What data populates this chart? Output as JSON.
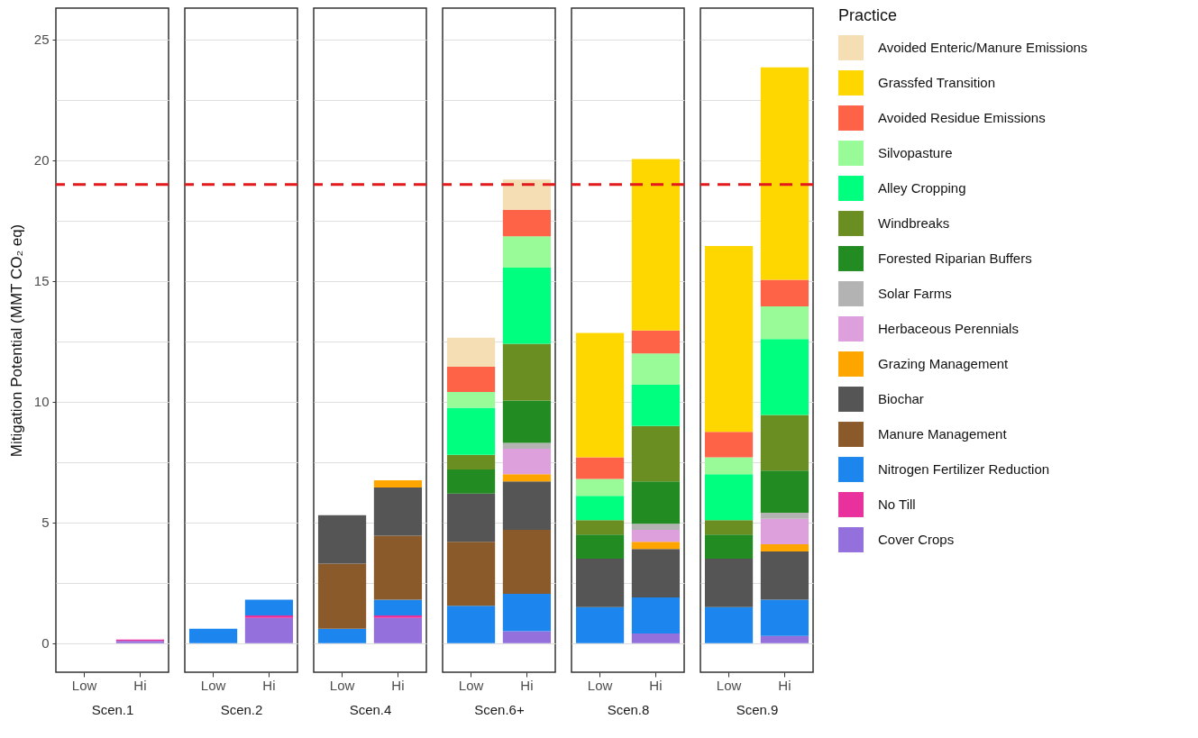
{
  "chart_data": [
    {
      "type": "bar",
      "stacked": true,
      "categories": [
        "Low",
        "Hi"
      ],
      "xlabel": "Scen.1",
      "ylabel": "Mitigation Potential (MMT CO₂ eq)",
      "ylim": [
        -1.2,
        26.3
      ],
      "yticks": [
        0,
        {
          "value": 2.5,
          "label": null
        },
        5,
        {
          "value": 7.5,
          "label": null
        },
        10,
        {
          "value": 12.5,
          "label": null
        },
        15,
        {
          "value": 17.5,
          "label": null
        },
        20,
        {
          "value": 22.5,
          "label": null
        },
        25
      ],
      "grid": "y",
      "ref_lines": [
        {
          "axis": "y",
          "value": 19,
          "color": "#e31a1c",
          "line_style": "dashed"
        }
      ],
      "series": [
        {
          "color": "#9370db",
          "values": [
            null,
            0.1
          ]
        },
        {
          "color": "#e8319c",
          "values": [
            null,
            0.05
          ]
        }
      ]
    },
    {
      "type": "bar",
      "stacked": true,
      "categories": [
        "Low",
        "Hi"
      ],
      "xlabel": "Scen.2",
      "ylim": [
        -1.2,
        26.3
      ],
      "yticks": [
        0,
        {
          "value": 2.5,
          "label": null
        },
        5,
        {
          "value": 7.5,
          "label": null
        },
        10,
        {
          "value": 12.5,
          "label": null
        },
        15,
        {
          "value": 17.5,
          "label": null
        },
        20,
        {
          "value": 22.5,
          "label": null
        },
        25
      ],
      "grid": "y",
      "tick_labels": "x",
      "ref_lines": [
        {
          "axis": "y",
          "value": 19,
          "color": "#e31a1c",
          "line_style": "dashed"
        }
      ],
      "series": [
        {
          "color": "#9370db",
          "values": [
            null,
            1.05
          ]
        },
        {
          "color": "#e8319c",
          "values": [
            null,
            0.1
          ]
        },
        {
          "color": "#1c86ee",
          "values": [
            0.6,
            0.65
          ]
        }
      ]
    },
    {
      "type": "bar",
      "stacked": true,
      "categories": [
        "Low",
        "Hi"
      ],
      "xlabel": "Scen.4",
      "ylim": [
        -1.2,
        26.3
      ],
      "yticks": [
        0,
        {
          "value": 2.5,
          "label": null
        },
        5,
        {
          "value": 7.5,
          "label": null
        },
        10,
        {
          "value": 12.5,
          "label": null
        },
        15,
        {
          "value": 17.5,
          "label": null
        },
        20,
        {
          "value": 22.5,
          "label": null
        },
        25
      ],
      "grid": "y",
      "tick_labels": "x",
      "ref_lines": [
        {
          "axis": "y",
          "value": 19,
          "color": "#e31a1c",
          "line_style": "dashed"
        }
      ],
      "series": [
        {
          "color": "#9370db",
          "values": [
            null,
            1.05
          ]
        },
        {
          "color": "#e8319c",
          "values": [
            null,
            0.1
          ]
        },
        {
          "color": "#1c86ee",
          "values": [
            0.6,
            0.65
          ]
        },
        {
          "color": "#8b5a2b",
          "values": [
            2.7,
            2.65
          ]
        },
        {
          "color": "#555555",
          "values": [
            2.0,
            2.0
          ]
        },
        {
          "color": "#ffa500",
          "values": [
            null,
            0.3
          ]
        }
      ]
    },
    {
      "type": "bar",
      "stacked": true,
      "categories": [
        "Low",
        "Hi"
      ],
      "xlabel": "Scen.6+",
      "ylim": [
        -1.2,
        26.3
      ],
      "yticks": [
        0,
        {
          "value": 2.5,
          "label": null
        },
        5,
        {
          "value": 7.5,
          "label": null
        },
        10,
        {
          "value": 12.5,
          "label": null
        },
        15,
        {
          "value": 17.5,
          "label": null
        },
        20,
        {
          "value": 22.5,
          "label": null
        },
        25
      ],
      "grid": "y",
      "tick_labels": "x",
      "ref_lines": [
        {
          "axis": "y",
          "value": 19,
          "color": "#e31a1c",
          "line_style": "dashed"
        }
      ],
      "series": [
        {
          "color": "#9370db",
          "values": [
            null,
            0.5
          ]
        },
        {
          "color": "#1c86ee",
          "values": [
            1.55,
            1.55
          ]
        },
        {
          "color": "#8b5a2b",
          "values": [
            2.65,
            2.65
          ]
        },
        {
          "color": "#555555",
          "values": [
            2.0,
            2.0
          ]
        },
        {
          "color": "#ffa500",
          "values": [
            null,
            0.3
          ]
        },
        {
          "color": "#dda0dd",
          "values": [
            null,
            1.05
          ]
        },
        {
          "color": "#b3b3b3",
          "values": [
            null,
            0.25
          ]
        },
        {
          "color": "#228b22",
          "values": [
            1.0,
            1.75
          ]
        },
        {
          "color": "#6b8e23",
          "values": [
            0.6,
            2.35
          ]
        },
        {
          "color": "#00ff7f",
          "values": [
            1.95,
            3.15
          ]
        },
        {
          "color": "#98fb98",
          "values": [
            0.65,
            1.3
          ]
        },
        {
          "color": "#ff6347",
          "values": [
            1.05,
            1.1
          ]
        },
        {
          "color": "#f5deb3",
          "values": [
            1.2,
            1.25
          ]
        }
      ]
    },
    {
      "type": "bar",
      "stacked": true,
      "categories": [
        "Low",
        "Hi"
      ],
      "xlabel": "Scen.8",
      "ylim": [
        -1.2,
        26.3
      ],
      "yticks": [
        0,
        {
          "value": 2.5,
          "label": null
        },
        5,
        {
          "value": 7.5,
          "label": null
        },
        10,
        {
          "value": 12.5,
          "label": null
        },
        15,
        {
          "value": 17.5,
          "label": null
        },
        20,
        {
          "value": 22.5,
          "label": null
        },
        25
      ],
      "grid": "y",
      "tick_labels": "x",
      "ref_lines": [
        {
          "axis": "y",
          "value": 19,
          "color": "#e31a1c",
          "line_style": "dashed"
        }
      ],
      "series": [
        {
          "color": "#9370db",
          "values": [
            null,
            0.4
          ]
        },
        {
          "color": "#1c86ee",
          "values": [
            1.5,
            1.5
          ]
        },
        {
          "color": "#555555",
          "values": [
            2.0,
            2.0
          ]
        },
        {
          "color": "#ffa500",
          "values": [
            null,
            0.3
          ]
        },
        {
          "color": "#dda0dd",
          "values": [
            null,
            0.5
          ]
        },
        {
          "color": "#b3b3b3",
          "values": [
            null,
            0.25
          ]
        },
        {
          "color": "#228b22",
          "values": [
            1.0,
            1.75
          ]
        },
        {
          "color": "#6b8e23",
          "values": [
            0.6,
            2.3
          ]
        },
        {
          "color": "#00ff7f",
          "values": [
            1.0,
            1.7
          ]
        },
        {
          "color": "#98fb98",
          "values": [
            0.7,
            1.3
          ]
        },
        {
          "color": "#ff6347",
          "values": [
            0.9,
            0.95
          ]
        },
        {
          "color": "#ffd700",
          "values": [
            5.15,
            7.1
          ]
        }
      ]
    },
    {
      "type": "bar",
      "stacked": true,
      "categories": [
        "Low",
        "Hi"
      ],
      "xlabel": "Scen.9",
      "ylim": [
        -1.2,
        26.3
      ],
      "yticks": [
        0,
        {
          "value": 2.5,
          "label": null
        },
        5,
        {
          "value": 7.5,
          "label": null
        },
        10,
        {
          "value": 12.5,
          "label": null
        },
        15,
        {
          "value": 17.5,
          "label": null
        },
        20,
        {
          "value": 22.5,
          "label": null
        },
        25
      ],
      "grid": "y",
      "tick_labels": "x",
      "legend": "right",
      "legend_title": "Practice",
      "ref_lines": [
        {
          "axis": "y",
          "value": 19,
          "color": "#e31a1c",
          "line_style": "dashed"
        }
      ],
      "series": [
        {
          "name": "Cover Crops",
          "color": "#9370db",
          "values": [
            null,
            0.3
          ]
        },
        {
          "name": "No Till",
          "color": "#e8319c",
          "values": [
            null,
            null
          ]
        },
        {
          "name": "Nitrogen Fertilizer Reduction",
          "color": "#1c86ee",
          "values": [
            1.5,
            1.5
          ]
        },
        {
          "name": "Manure Management",
          "color": "#8b5a2b",
          "values": [
            null,
            null
          ]
        },
        {
          "name": "Biochar",
          "color": "#555555",
          "values": [
            2.0,
            2.0
          ]
        },
        {
          "name": "Grazing Management",
          "color": "#ffa500",
          "values": [
            null,
            0.3
          ]
        },
        {
          "name": "Herbaceous Perennials",
          "color": "#dda0dd",
          "values": [
            null,
            1.05
          ]
        },
        {
          "name": "Solar Farms",
          "color": "#b3b3b3",
          "values": [
            null,
            0.25
          ]
        },
        {
          "name": "Forested Riparian Buffers",
          "color": "#228b22",
          "values": [
            1.0,
            1.75
          ]
        },
        {
          "name": "Windbreaks",
          "color": "#6b8e23",
          "values": [
            0.6,
            2.3
          ]
        },
        {
          "name": "Alley Cropping",
          "color": "#00ff7f",
          "values": [
            1.9,
            3.15
          ]
        },
        {
          "name": "Silvopasture",
          "color": "#98fb98",
          "values": [
            0.7,
            1.35
          ]
        },
        {
          "name": "Avoided Residue Emissions",
          "color": "#ff6347",
          "values": [
            1.05,
            1.1
          ]
        },
        {
          "name": "Grassfed Transition",
          "color": "#ffd700",
          "values": [
            7.7,
            8.8
          ]
        },
        {
          "name": "Avoided Enteric/Manure Emissions",
          "color": "#f5deb3",
          "values": [
            null,
            null
          ]
        }
      ]
    }
  ]
}
